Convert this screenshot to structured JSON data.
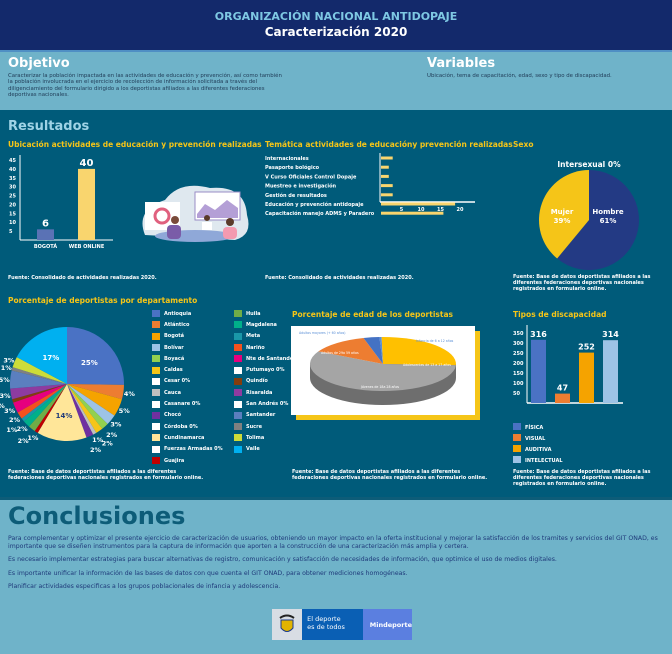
{
  "header": {
    "title": "ORGANIZACIÓN NACIONAL ANTIDOPAJE",
    "subtitle": "Caracterización 2020"
  },
  "objetivo": {
    "title": "Objetivo",
    "text": "Caracterizar la población impactada en las actividades de educación y prevención, así como también la población involucrada en el ejercicio de recolección de información solicitada a través del diligenciamiento del formulario dirigido a los deportistas afiliados a las diferentes federaciones deportivas nacionales."
  },
  "variables": {
    "title": "Variables",
    "text": "Ubicación, tema de capacitación, edad, sexo y tipo de discapacidad."
  },
  "resultados": {
    "title": "Resultados"
  },
  "sources": {
    "actividades": "Fuente: Consolidado de actividades realizadas 2020.",
    "deportistas": "Fuente: Base de datos deportistas afiliados a las diferentes federaciones deportivas nacionales registrados en formulario online."
  },
  "chart_data": [
    {
      "type": "bar",
      "title": "Ubicación actividades de educación y prevención realizadas",
      "categories": [
        "BOGOTÁ",
        "WEB ONLINE"
      ],
      "values": [
        6,
        40
      ],
      "yticks": [
        5,
        10,
        15,
        20,
        25,
        30,
        35,
        40,
        45
      ],
      "ylim": [
        0,
        45
      ],
      "colors": [
        "#5a72b5",
        "#f9d56e"
      ]
    },
    {
      "type": "bar",
      "orientation": "horizontal",
      "title": "Temática actividades de educacióny prevención realizadas",
      "categories": [
        "Internacionales",
        "Pasaporte bológico",
        "V Curso Oficiales Control Dopaje",
        "Muestreo e investigación",
        "Gestión de resultados",
        "Educación y prevención antidopaje",
        "Capacitación manejo ADMS y Paradero"
      ],
      "values": [
        3,
        2,
        2,
        3,
        3,
        19,
        16
      ],
      "xticks": [
        5,
        10,
        15,
        20
      ],
      "xlim": [
        0,
        24
      ],
      "color": "#f9d56e"
    },
    {
      "type": "pie",
      "title": "Sexo",
      "labels": [
        "Hombre",
        "Mujer",
        "Intersexual"
      ],
      "values": [
        61,
        39,
        0
      ],
      "colors": [
        "#233a84",
        "#f5c518",
        "#ffffff"
      ]
    },
    {
      "type": "pie",
      "title": "Porcentaje de deportistas por departamento",
      "labels": [
        "Antioquia",
        "Atlántico",
        "Bogotá",
        "Bolívar",
        "Boyacá",
        "Caldas",
        "Cesar 0%",
        "Cauca",
        "Casanare 0%",
        "Chocó",
        "Córdoba 0%",
        "Cundinamarca",
        "Fuerzas Armadas 0%",
        "Guajira",
        "Huila",
        "Magdalena",
        "Meta",
        "Nariño",
        "Nte de Santander",
        "Putumayo 0%",
        "Quindío",
        "Risaralda",
        "San Andrés 0%",
        "Santander",
        "Sucre",
        "Tolima",
        "Valle"
      ],
      "values": [
        25,
        4,
        5,
        3,
        2,
        2,
        0,
        1,
        0,
        2,
        0,
        14,
        0,
        1,
        2,
        2,
        1,
        2,
        3,
        0,
        1,
        3,
        0,
        5,
        1,
        3,
        17
      ],
      "colors": [
        "#4a72c4",
        "#ed7d31",
        "#f5a300",
        "#9dc3e6",
        "#92d050",
        "#f5c518",
        "#ffffff",
        "#bfbfbf",
        "#ffffff",
        "#7030a0",
        "#ffffff",
        "#ffe699",
        "#ffffff",
        "#c00000",
        "#70ad47",
        "#00b08a",
        "#1a97a8",
        "#f4511e",
        "#e6007e",
        "#ffffff",
        "#843c0c",
        "#8e3ba0",
        "#ffffff",
        "#5b7fbf",
        "#808080",
        "#cddc39",
        "#00b0f0"
      ]
    },
    {
      "type": "pie",
      "title": "Porcentaje de edad de los deportistas",
      "labels": [
        "Adultos mayores (+ 60 años)",
        "Adultos de 29a 59 años",
        "Jóvenes de 18a 28 años",
        "Adolescentes de 13 a 17 años",
        "Infancia de 6 a 12 años"
      ],
      "values": [
        0.5,
        26,
        57,
        13,
        3.5
      ],
      "colors": [
        "#5a8fd6",
        "#ffc000",
        "#a5a5a5",
        "#ed7d31",
        "#4472c4"
      ]
    },
    {
      "type": "bar",
      "title": "Tipos de discapacidad",
      "categories": [
        "FÍSICA",
        "VISUAL",
        "AUDITIVA",
        "INTELECTUAL"
      ],
      "values": [
        316,
        47,
        252,
        314
      ],
      "yticks": [
        50,
        100,
        150,
        200,
        250,
        300,
        350
      ],
      "ylim": [
        0,
        350
      ],
      "colors": [
        "#4a72c4",
        "#ed7d31",
        "#f5a300",
        "#9dc3e6"
      ]
    }
  ],
  "conclusiones": {
    "title": "Conclusiones",
    "paragraphs": [
      "Para complementar y optimizar el presente ejercicio de caracterización de usuarios, obteniendo un mayor impacto en la oferta institucional y mejorar la satisfacción de los tramites y servicios del GIT ONAD, es importante que se diseñen instrumentos para la captura de información que aporten a la construcción de una caracterización más amplia y certera.",
      "Es necesario implementar estrategias para buscar alternativas de registro, comunicación y satisfacción de necesidades de información, que optimice el uso de medios digitales.",
      "Es importante unificar la información de las bases de datos con que cuenta el GIT ONAD, para obtener mediciones homogéneas.",
      "Planificar actividades especificas a los grupos poblacionales de infancia y adolescencia."
    ]
  },
  "footer": {
    "logo_text_1": "El deporte",
    "logo_text_2": "es de todos",
    "brand": "Mindeporte"
  }
}
